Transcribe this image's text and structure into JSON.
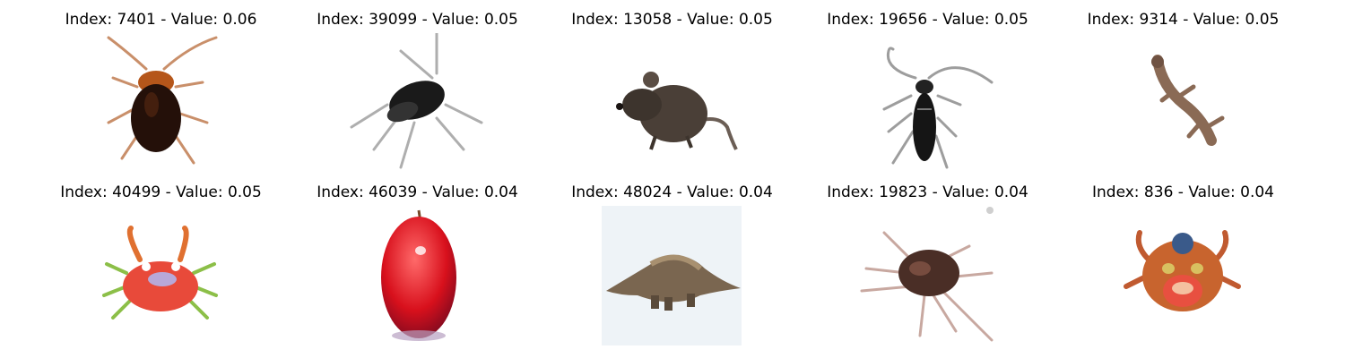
{
  "cells": [
    {
      "title": "Index: 7401 - Value: 0.06",
      "icon": "cockroach-image"
    },
    {
      "title": "Index: 39099 - Value: 0.05",
      "icon": "beetle-image"
    },
    {
      "title": "Index: 13058 - Value: 0.05",
      "icon": "mouse-image"
    },
    {
      "title": "Index: 19656 - Value: 0.05",
      "icon": "longhorn-beetle-image"
    },
    {
      "title": "Index: 9314 - Value: 0.05",
      "icon": "lizard-image"
    },
    {
      "title": "Index: 40499 - Value: 0.05",
      "icon": "crab-image"
    },
    {
      "title": "Index: 46039 - Value: 0.04",
      "icon": "apple-image"
    },
    {
      "title": "Index: 48024 - Value: 0.04",
      "icon": "dinosaur-image"
    },
    {
      "title": "Index: 19823 - Value: 0.04",
      "icon": "spider-image"
    },
    {
      "title": "Index: 836 - Value: 0.04",
      "icon": "crab-mask-image"
    }
  ]
}
